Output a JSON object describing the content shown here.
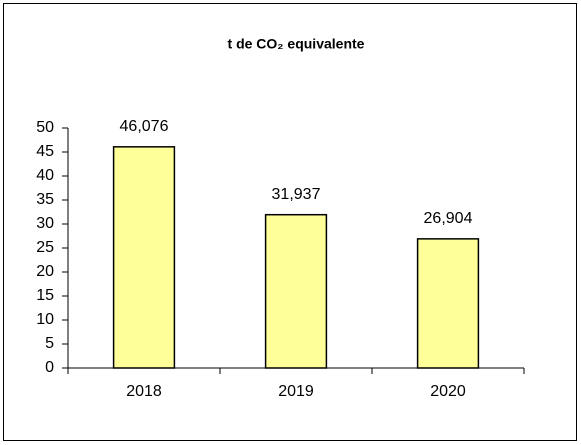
{
  "chart_data": {
    "type": "bar",
    "title": "t de CO₂ equivalente",
    "categories": [
      "2018",
      "2019",
      "2020"
    ],
    "values": [
      46.076,
      31.937,
      26.904
    ],
    "value_labels": [
      "46,076",
      "31,937",
      "26,904"
    ],
    "color": "#ffff99",
    "ylim": [
      0,
      50
    ],
    "yticks": [
      0,
      5,
      10,
      15,
      20,
      25,
      30,
      35,
      40,
      45,
      50
    ]
  }
}
